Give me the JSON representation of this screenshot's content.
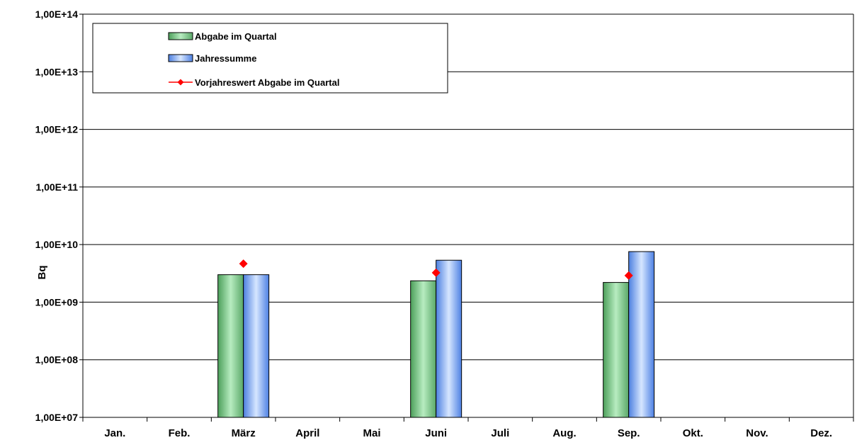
{
  "chart_data": {
    "type": "bar",
    "title": "",
    "xlabel": "",
    "ylabel": "Bq",
    "yscale": "log",
    "ylim": [
      10000000,
      100000000000000
    ],
    "y_tick_labels": [
      "1,00E+07",
      "1,00E+08",
      "1,00E+09",
      "1,00E+10",
      "1,00E+11",
      "1,00E+12",
      "1,00E+13",
      "1,00E+14"
    ],
    "y_tick_values": [
      10000000,
      100000000,
      1000000000,
      10000000000,
      100000000000,
      1000000000000,
      10000000000000,
      100000000000000
    ],
    "grid": true,
    "legend_position": "top-left",
    "categories": [
      "Jan.",
      "Feb.",
      "März",
      "April",
      "Mai",
      "Juni",
      "Juli",
      "Aug.",
      "Sep.",
      "Okt.",
      "Nov.",
      "Dez."
    ],
    "series": [
      {
        "name": "Abgabe im Quartal",
        "kind": "bar",
        "color": "#8fd39b",
        "values": [
          null,
          null,
          3000000000,
          null,
          null,
          2350000000,
          null,
          null,
          2200000000,
          null,
          null,
          null
        ]
      },
      {
        "name": "Jahressumme",
        "kind": "bar",
        "color": "#8fb6ff",
        "values": [
          null,
          null,
          3000000000,
          null,
          null,
          5350000000,
          null,
          null,
          7550000000,
          null,
          null,
          null
        ]
      },
      {
        "name": "Vorjahreswert Abgabe im Quartal",
        "kind": "marker",
        "color": "#ff0000",
        "values": [
          null,
          null,
          4650000000,
          null,
          null,
          3250000000,
          null,
          null,
          2900000000,
          null,
          null,
          null
        ]
      }
    ]
  }
}
